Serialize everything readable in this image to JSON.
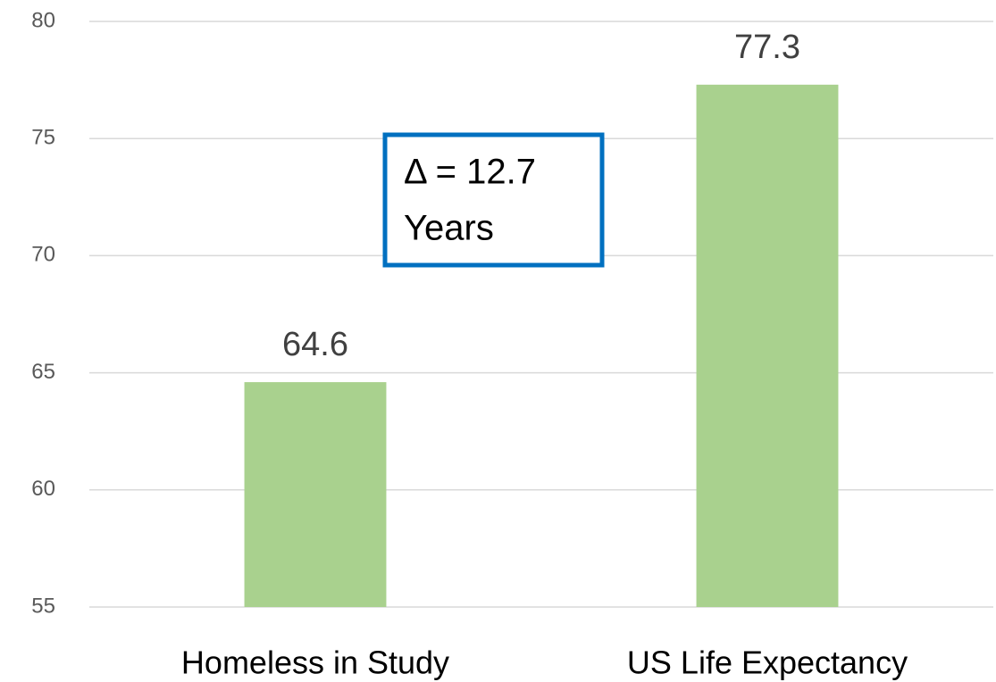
{
  "chart_data": {
    "type": "bar",
    "categories": [
      "Homeless in Study",
      "US Life Expectancy"
    ],
    "values": [
      64.6,
      77.3
    ],
    "color": "#a9d18e",
    "ylim": [
      55,
      80
    ],
    "yticks": [
      55,
      60,
      65,
      70,
      75,
      80
    ],
    "grid": true,
    "annotation": [
      "Δ = 12.7",
      "Years"
    ]
  }
}
